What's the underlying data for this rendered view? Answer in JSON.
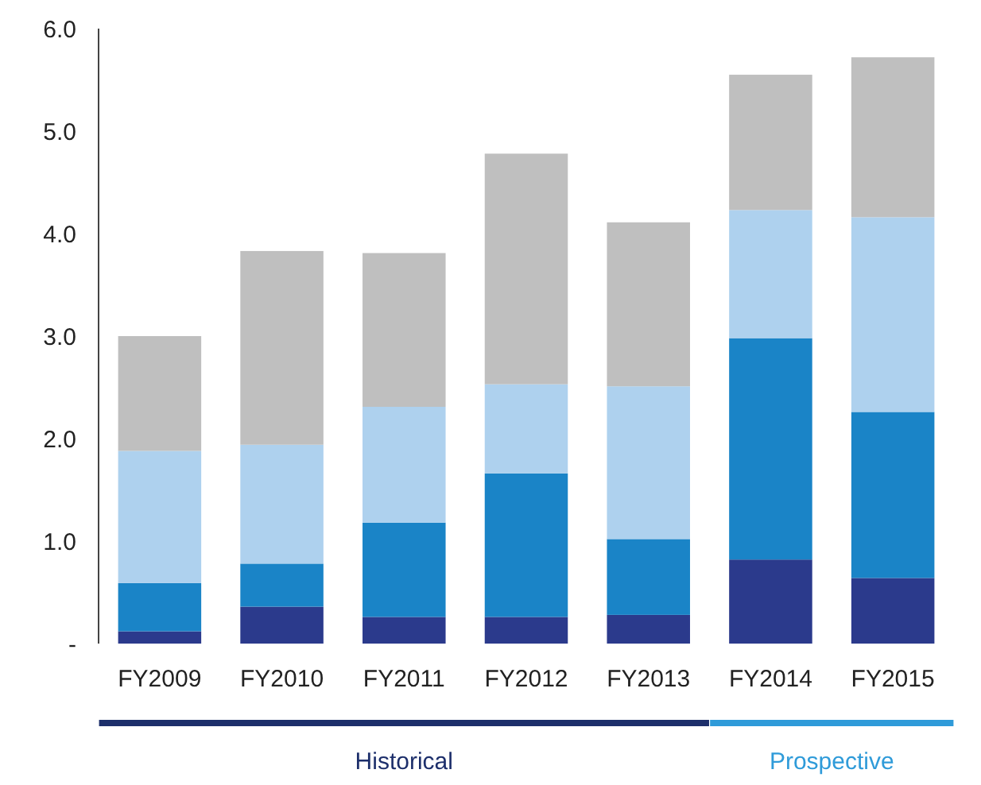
{
  "chart_data": {
    "type": "bar",
    "stacked": true,
    "categories": [
      "FY2009",
      "FY2010",
      "FY2011",
      "FY2012",
      "FY2013",
      "FY2014",
      "FY2015"
    ],
    "series": [
      {
        "color": "#2b3a8c",
        "values": [
          0.12,
          0.36,
          0.26,
          0.26,
          0.28,
          0.82,
          0.64
        ]
      },
      {
        "color": "#1a84c7",
        "values": [
          0.47,
          0.42,
          0.92,
          1.4,
          0.74,
          2.16,
          1.62
        ]
      },
      {
        "color": "#aed1ee",
        "values": [
          1.29,
          1.16,
          1.13,
          0.87,
          1.49,
          1.25,
          1.9
        ]
      },
      {
        "color": "#bfbfbf",
        "values": [
          1.12,
          1.89,
          1.5,
          2.25,
          1.6,
          1.32,
          1.56
        ]
      }
    ],
    "ylim": [
      0,
      6
    ],
    "yticks": [
      {
        "value": 0,
        "label": "-"
      },
      {
        "value": 1,
        "label": "1.0"
      },
      {
        "value": 2,
        "label": "2.0"
      },
      {
        "value": 3,
        "label": "3.0"
      },
      {
        "value": 4,
        "label": "4.0"
      },
      {
        "value": 5,
        "label": "5.0"
      },
      {
        "value": 6,
        "label": "6.0"
      }
    ],
    "annotations": [
      "Historical",
      "Prospective"
    ]
  }
}
